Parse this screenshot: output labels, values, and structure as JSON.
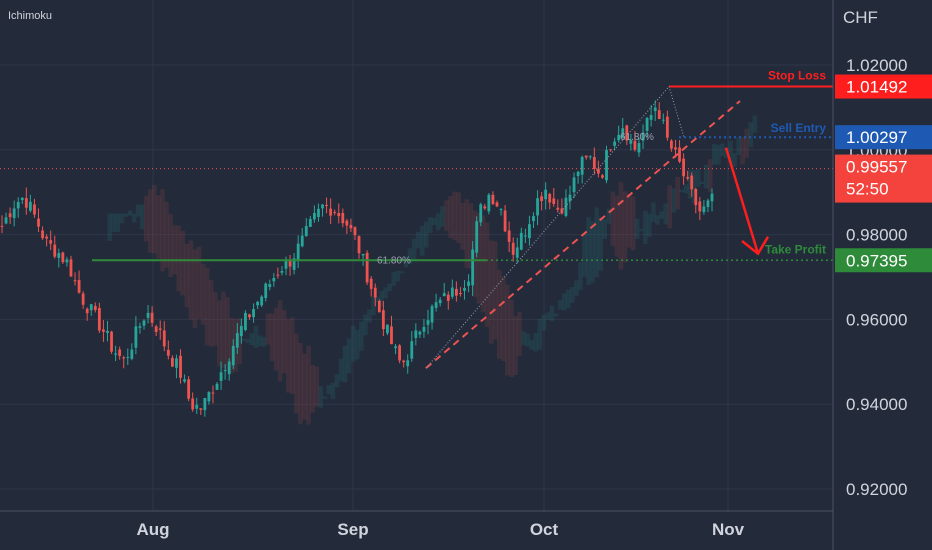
{
  "indicator_label": "Ichimoku",
  "currency": "CHF",
  "colors": {
    "background": "#232b3b",
    "up": "#26a69a",
    "down": "#ef5350",
    "stop_loss": "#ff1e1e",
    "sell_entry": "#1e5ab4",
    "take_profit": "#2e8b3a",
    "current": "#f4433c"
  },
  "levels": {
    "stop_loss": {
      "label": "Stop Loss",
      "value": 1.01492,
      "text": "1.01492"
    },
    "sell_entry": {
      "label": "Sell Entry",
      "value": 1.00297,
      "text": "1.00297"
    },
    "take_profit": {
      "label": "Take Profit",
      "value": 0.97395,
      "text": "0.97395"
    },
    "current": {
      "value": 0.99557,
      "text": "0.99557",
      "countdown": "52:50"
    }
  },
  "fib_labels": {
    "upper": "61.80%",
    "lower": "61.80%"
  },
  "chart_data": {
    "type": "candlestick",
    "currency": "CHF",
    "ylim": [
      0.91,
      1.03
    ],
    "y_ticks": [
      {
        "value": 1.02,
        "text": "1.02000"
      },
      {
        "value": 1.0,
        "text": "1.00000"
      },
      {
        "value": 0.98,
        "text": "0.98000"
      },
      {
        "value": 0.96,
        "text": "0.96000"
      },
      {
        "value": 0.94,
        "text": "0.94000"
      },
      {
        "value": 0.92,
        "text": "0.92000"
      }
    ],
    "x_ticks": [
      "Aug",
      "Sep",
      "Oct",
      "Nov"
    ],
    "grid": true,
    "price_path": [
      0.982,
      0.987,
      0.989,
      0.984,
      0.978,
      0.976,
      0.973,
      0.966,
      0.962,
      0.958,
      0.953,
      0.95,
      0.956,
      0.962,
      0.958,
      0.952,
      0.948,
      0.94,
      0.939,
      0.944,
      0.949,
      0.955,
      0.96,
      0.964,
      0.968,
      0.972,
      0.974,
      0.978,
      0.983,
      0.987,
      0.986,
      0.983,
      0.978,
      0.97,
      0.962,
      0.955,
      0.949,
      0.954,
      0.96,
      0.963,
      0.965,
      0.967,
      0.97,
      0.985,
      0.99,
      0.986,
      0.976,
      0.98,
      0.987,
      0.991,
      0.986,
      0.988,
      0.996,
      0.998,
      0.994,
      1.003,
      1.006,
      1.0,
      1.005,
      1.011,
      1.002,
      0.997,
      0.99,
      0.985,
      0.988
    ]
  }
}
